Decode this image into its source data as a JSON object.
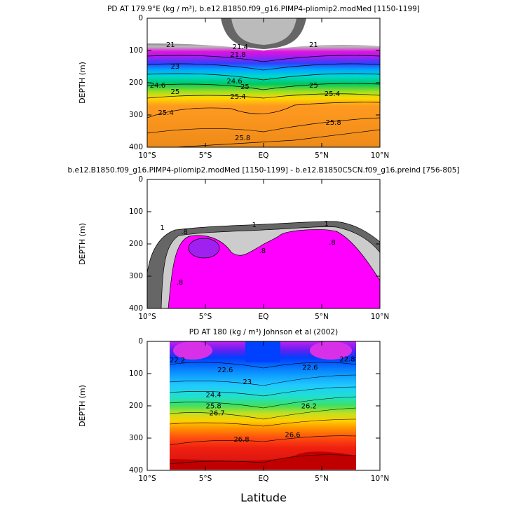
{
  "chart_data": [
    {
      "type": "contour",
      "title": "PD AT 179.9°E (kg / m³), b.e12.B1850.f09_g16.PIMP4-pliomip2.modMed [1150-1199]",
      "ylabel": "DEPTH (m)",
      "xlim": [
        -10,
        10
      ],
      "ylim": [
        400,
        0
      ],
      "xticks": [
        {
          "value": -10,
          "label": "10°S"
        },
        {
          "value": -5,
          "label": "5°S"
        },
        {
          "value": 0,
          "label": "EQ"
        },
        {
          "value": 5,
          "label": "5°N"
        },
        {
          "value": 10,
          "label": "10°N"
        }
      ],
      "yticks": [
        0,
        100,
        200,
        300,
        400
      ],
      "contour_labels": {
        "x": [
          -8,
          -2,
          4.3,
          -2.2,
          -7.6,
          -9.1,
          -7.6,
          -1.6,
          -2.5,
          5.9,
          -2.2,
          -8.4,
          -1.8,
          6,
          4.3
        ],
        "y": [
          83,
          89,
          83,
          113,
          150,
          209,
          228,
          213,
          196,
          235,
          243,
          293,
          372,
          324,
          209
        ],
        "values": [
          21,
          21.4,
          21,
          21.8,
          23,
          24.6,
          25,
          25,
          24.6,
          25.4,
          25.4,
          25.4,
          25.8,
          25.8,
          25
        ]
      }
    },
    {
      "type": "contour",
      "title": "b.e12.B1850.f09_g16.PIMP4-pliomip2.modMed [1150-1199] - b.e12.B1850C5CN.f09_g16.preind [756-805]",
      "ylabel": "DEPTH (m)",
      "xlim": [
        -10,
        10
      ],
      "ylim": [
        400,
        0
      ],
      "xticks": [
        {
          "value": -10,
          "label": "10°S"
        },
        {
          "value": -5,
          "label": "5°S"
        },
        {
          "value": 0,
          "label": "EQ"
        },
        {
          "value": 5,
          "label": "5°N"
        },
        {
          "value": 10,
          "label": "10°N"
        }
      ],
      "yticks": [
        0,
        100,
        200,
        300,
        400
      ],
      "contour_labels": {
        "x": [
          -8.7,
          -0.8,
          5.4,
          -6.8,
          5.9,
          -7.2,
          -0.1
        ],
        "y": [
          150,
          141,
          137,
          163,
          196,
          320,
          222
        ],
        "values": [
          1,
          1,
          1,
          0.8,
          0.8,
          0.8,
          0.8
        ],
        "value_labels": [
          "1",
          "1",
          "1",
          ".8",
          ".8",
          ".8",
          ".8"
        ]
      }
    },
    {
      "type": "contour",
      "title": "PD AT 180 (kg / m³) Johnson et al (2002)",
      "ylabel": "DEPTH (m)",
      "xlabel": "Latitude",
      "xlim": [
        -10,
        10
      ],
      "ylim": [
        400,
        0
      ],
      "xticks": [
        {
          "value": -10,
          "label": "10°S"
        },
        {
          "value": -5,
          "label": "5°S"
        },
        {
          "value": 0,
          "label": "EQ"
        },
        {
          "value": 5,
          "label": "5°N"
        },
        {
          "value": 10,
          "label": "10°N"
        }
      ],
      "yticks": [
        0,
        100,
        200,
        300,
        400
      ],
      "contour_labels": {
        "x": [
          -7.4,
          -3.3,
          4,
          -1.4,
          -4.3,
          -4.3,
          3.9,
          -4,
          -1.9,
          2.5,
          7.2
        ],
        "y": [
          59,
          89,
          81,
          126,
          166,
          201,
          201,
          223,
          304,
          290,
          55
        ],
        "values": [
          22.2,
          22.6,
          22.6,
          23,
          24.4,
          25.8,
          26.2,
          26.7,
          26.8,
          26.6,
          22.8
        ]
      }
    }
  ]
}
